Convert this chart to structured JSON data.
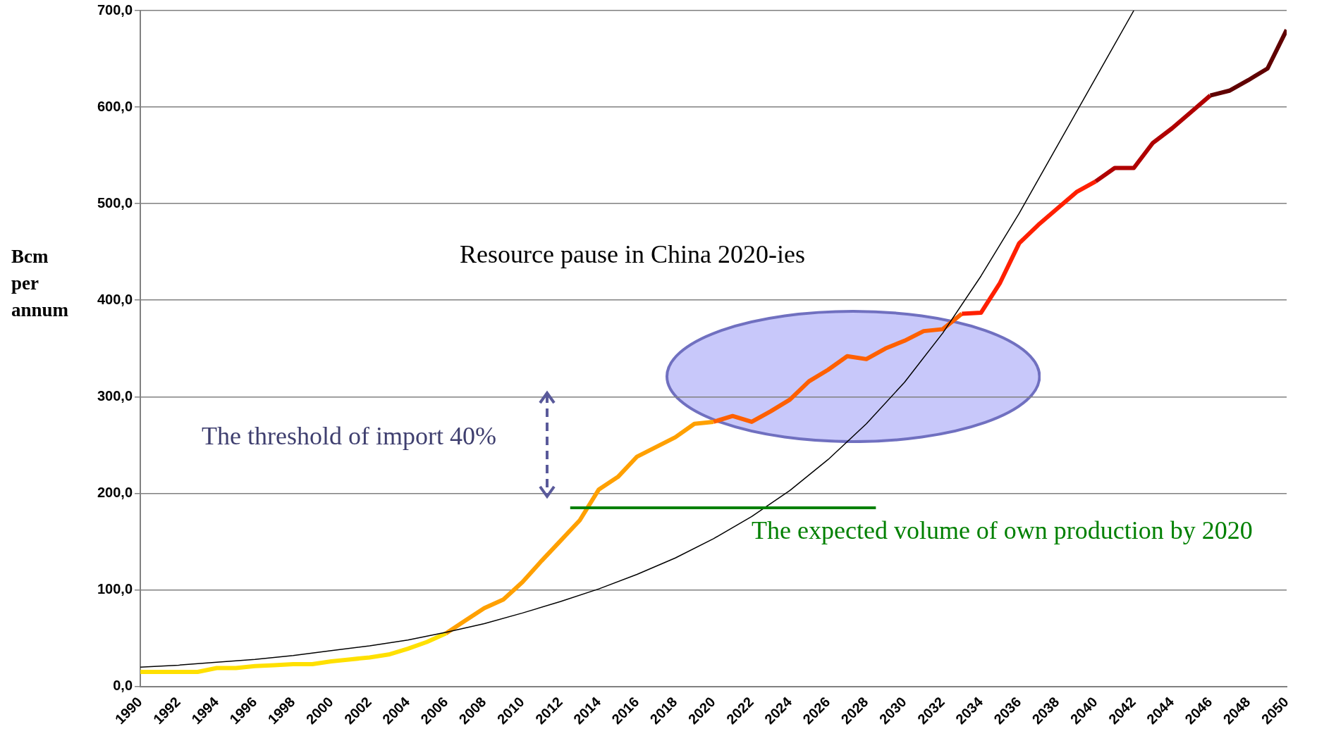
{
  "chart_data": {
    "type": "line",
    "ylabel": "Bcm per annum",
    "xlim": [
      1990,
      2050
    ],
    "xticks": [
      1990,
      1992,
      1994,
      1996,
      1998,
      2000,
      2002,
      2004,
      2006,
      2008,
      2010,
      2012,
      2014,
      2016,
      2018,
      2020,
      2022,
      2024,
      2026,
      2028,
      2030,
      2032,
      2034,
      2036,
      2038,
      2040,
      2042,
      2044,
      2046,
      2048,
      2050
    ],
    "ylim": [
      0,
      700
    ],
    "yticks": [
      {
        "value": 0,
        "label": "0,0"
      },
      {
        "value": 100,
        "label": "100,0"
      },
      {
        "value": 200,
        "label": "200,0"
      },
      {
        "value": 300,
        "label": "300,0"
      },
      {
        "value": 400,
        "label": "400,0"
      },
      {
        "value": 500,
        "label": "500,0"
      },
      {
        "value": 600,
        "label": "600,0"
      },
      {
        "value": 700,
        "label": "700,0"
      }
    ],
    "grid": "y",
    "legend": false,
    "marker": "none",
    "line_style": "solid",
    "annotations": [
      "Resource pause in China 2020-ies",
      "The threshold of import 40%",
      "The expected volume of own production by 2020"
    ],
    "series": [
      {
        "color": "#ffe000",
        "x": [
          1990,
          1991,
          1992,
          1993,
          1994,
          1995,
          1996,
          1997,
          1998,
          1999,
          2000,
          2001,
          2002,
          2003,
          2004,
          2005,
          2006
        ],
        "values": [
          15,
          15,
          15,
          15,
          19,
          19,
          21,
          22,
          23,
          23,
          26,
          28,
          30,
          33,
          39,
          46,
          55
        ]
      },
      {
        "color": "#ffa000",
        "x": [
          2006,
          2007,
          2008,
          2009,
          2010,
          2011,
          2012,
          2013,
          2014,
          2015,
          2016,
          2017,
          2018,
          2019,
          2020
        ],
        "values": [
          55,
          68,
          81,
          90,
          108,
          130,
          151,
          172,
          204,
          217,
          238,
          248,
          258,
          272,
          274
        ]
      },
      {
        "color": "#ff6000",
        "x": [
          2020,
          2021,
          2022,
          2023,
          2024,
          2025,
          2026,
          2027,
          2028,
          2029,
          2030,
          2031,
          2032,
          2033
        ],
        "values": [
          274,
          280,
          274,
          285,
          297,
          316,
          328,
          342,
          339,
          350,
          358,
          368,
          370,
          386
        ]
      },
      {
        "color": "#ff2000",
        "x": [
          2033,
          2034,
          2035,
          2036,
          2037,
          2038,
          2039,
          2040
        ],
        "values": [
          386,
          387,
          418,
          459,
          478,
          495,
          512,
          523
        ]
      },
      {
        "color": "#b00000",
        "x": [
          2040,
          2041,
          2042,
          2043,
          2044,
          2045,
          2046
        ],
        "values": [
          523,
          537,
          537,
          563,
          578,
          595,
          612
        ]
      },
      {
        "color": "#600000",
        "x": [
          2046,
          2047,
          2048,
          2049,
          2050
        ],
        "values": [
          612,
          617,
          628,
          640,
          680
        ]
      },
      {
        "color": "#000000",
        "x": [
          1990,
          1992,
          1994,
          1996,
          1998,
          2000,
          2002,
          2004,
          2006,
          2008,
          2010,
          2012,
          2014,
          2016,
          2018,
          2020,
          2022,
          2024,
          2026,
          2028,
          2030,
          2032,
          2034,
          2036,
          2038,
          2040,
          2042
        ],
        "values": [
          20,
          22,
          25,
          28,
          32,
          37,
          42,
          48,
          56,
          65,
          76,
          88,
          101,
          116,
          133,
          153,
          176,
          203,
          235,
          272,
          315,
          366,
          425,
          490,
          560,
          630,
          700
        ]
      },
      {
        "color": "#008000",
        "x": [
          2012.5,
          2028.5
        ],
        "values": [
          185,
          185
        ]
      }
    ]
  }
}
